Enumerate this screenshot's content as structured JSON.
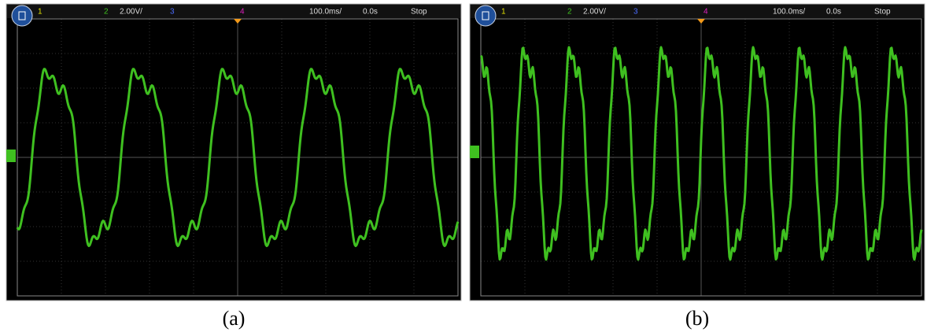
{
  "panels": [
    {
      "header": {
        "ch1": "1",
        "ch2": "2",
        "scale": "2.00V/",
        "ch3": "3",
        "ch4": "4",
        "timebase": "100.0ms/",
        "delay": "0.0s",
        "status": "Stop"
      },
      "caption": "(a)"
    },
    {
      "header": {
        "ch1": "1",
        "ch2": "2",
        "scale": "2.00V/",
        "ch3": "3",
        "ch4": "4",
        "timebase": "100.0ms/",
        "delay": "0.0s",
        "status": "Stop"
      },
      "caption": "(b)"
    }
  ]
}
